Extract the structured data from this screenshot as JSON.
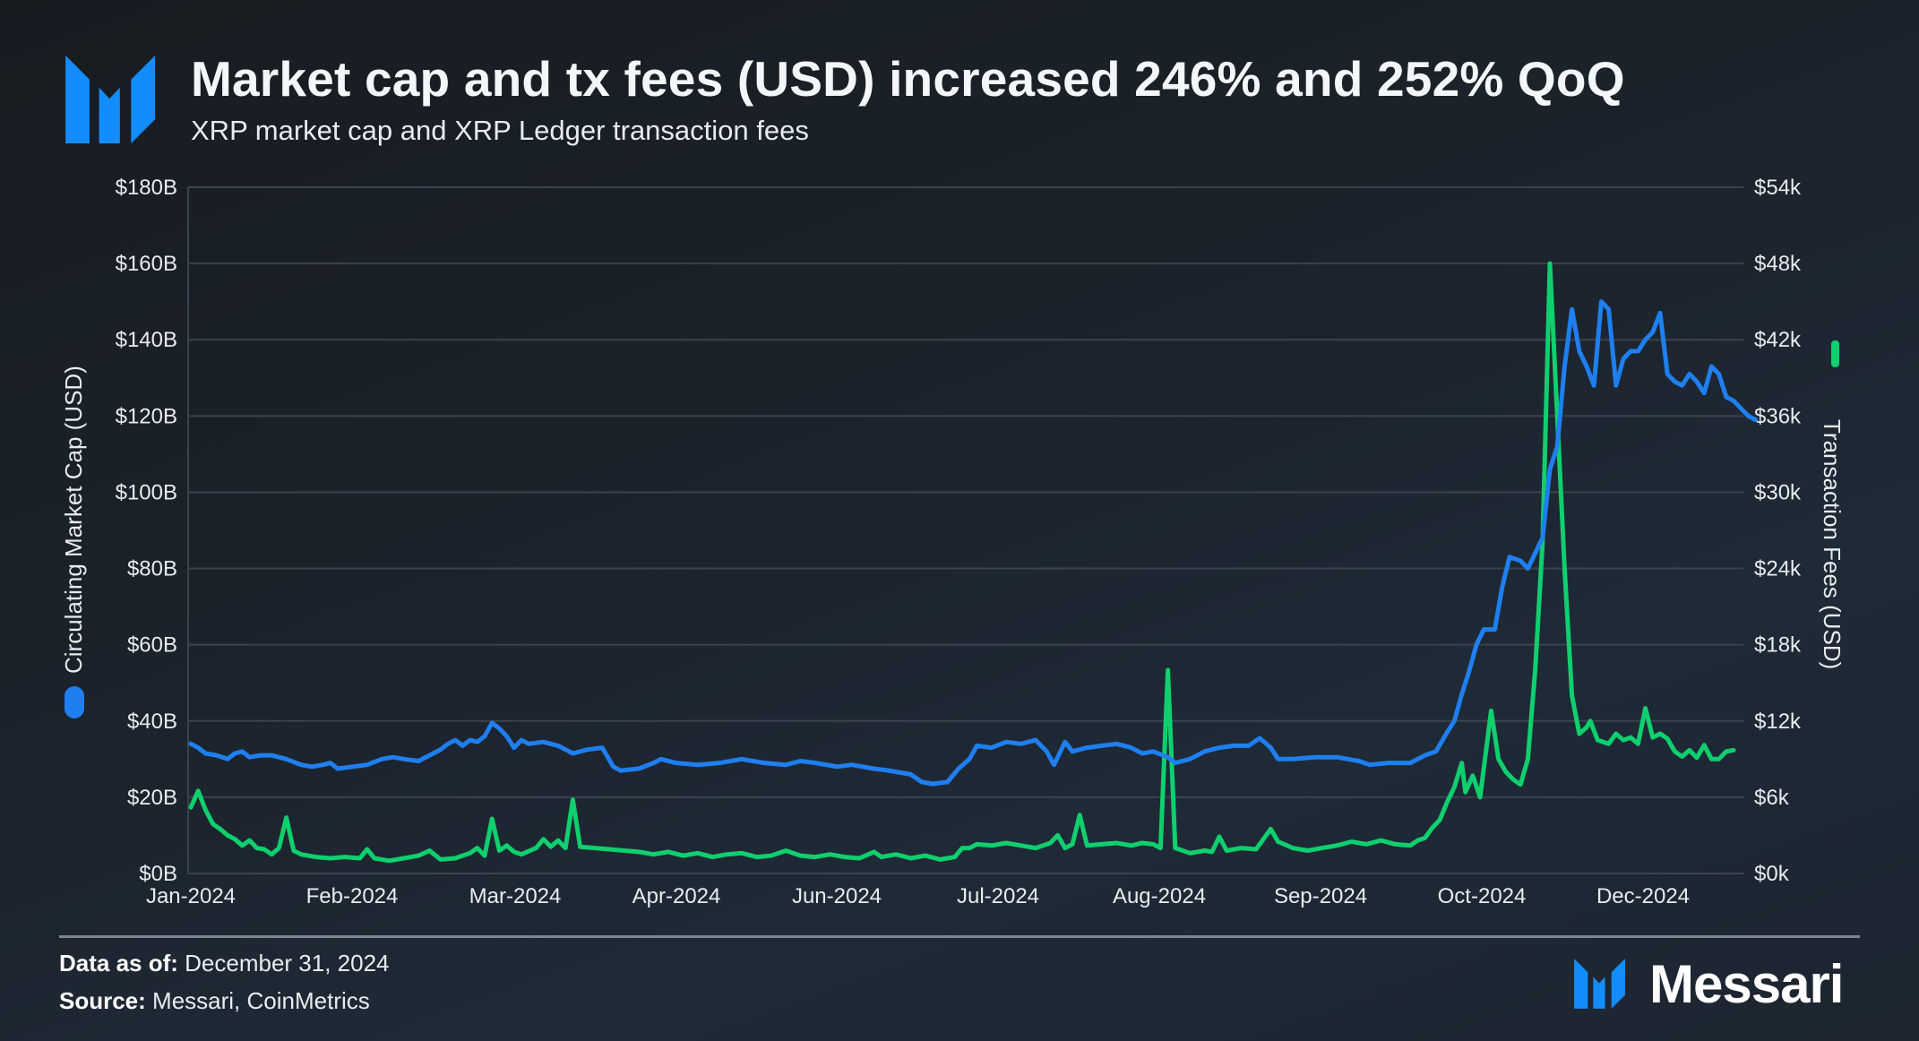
{
  "header": {
    "title": "Market cap and tx fees (USD) increased 246% and 252% QoQ",
    "subtitle": "XRP market cap and XRP Ledger transaction fees",
    "logo_icon": "messari-logo-icon"
  },
  "footer": {
    "data_as_of_label": "Data as of:",
    "data_as_of_value": " December 31, 2024",
    "source_label": "Source:",
    "source_value": " Messari, CoinMetrics",
    "brand_name": "Messari"
  },
  "colors": {
    "market_cap": "#1f7ff0",
    "tx_fees": "#0fcf6e",
    "logo": "#138dfb",
    "grid": "#3a434d"
  },
  "chart_data": {
    "type": "line",
    "title": "Market cap and tx fees (USD) increased 246% and 252% QoQ",
    "subtitle": "XRP market cap and XRP Ledger transaction fees",
    "xlabel": "",
    "ylabel": "Circulating Market Cap (USD)",
    "y2label": "Transaction Fees (USD)",
    "x_tick_labels": [
      "Jan-2024",
      "Feb-2024",
      "Mar-2024",
      "Apr-2024",
      "Jun-2024",
      "Jul-2024",
      "Aug-2024",
      "Sep-2024",
      "Oct-2024",
      "Dec-2024"
    ],
    "y_ticks": [
      "$0B",
      "$20B",
      "$40B",
      "$60B",
      "$80B",
      "$100B",
      "$120B",
      "$140B",
      "$160B",
      "$180B"
    ],
    "y2_ticks": [
      "$0k",
      "$6k",
      "$12k",
      "$18k",
      "$24k",
      "$30k",
      "$36k",
      "$42k",
      "$48k",
      "$54k"
    ],
    "ylim": [
      0,
      180
    ],
    "y2lim": [
      0,
      54000
    ],
    "grid": true,
    "legend_position": "axis titles (left: blue marker, right: green marker)",
    "x_unit": "day index from Jan 1, 2024 (0-365)",
    "series": [
      {
        "name": "Circulating Market Cap (USD)",
        "axis": "left",
        "unit": "USD billions",
        "points": [
          [
            0,
            34
          ],
          [
            2,
            33
          ],
          [
            4,
            31.5
          ],
          [
            7,
            31
          ],
          [
            10,
            30
          ],
          [
            12,
            31.5
          ],
          [
            14,
            32
          ],
          [
            16,
            30.5
          ],
          [
            19,
            31
          ],
          [
            22,
            31
          ],
          [
            26,
            30
          ],
          [
            30,
            28.5
          ],
          [
            33,
            28
          ],
          [
            36,
            28.5
          ],
          [
            38,
            29
          ],
          [
            40,
            27.5
          ],
          [
            44,
            28
          ],
          [
            48,
            28.5
          ],
          [
            52,
            30
          ],
          [
            55,
            30.5
          ],
          [
            58,
            30
          ],
          [
            62,
            29.5
          ],
          [
            65,
            31
          ],
          [
            68,
            32.5
          ],
          [
            70,
            34
          ],
          [
            72,
            35
          ],
          [
            74,
            33.5
          ],
          [
            76,
            35
          ],
          [
            78,
            34.5
          ],
          [
            80,
            36
          ],
          [
            82,
            39.5
          ],
          [
            84,
            38
          ],
          [
            86,
            36
          ],
          [
            88,
            33
          ],
          [
            90,
            35
          ],
          [
            92,
            34
          ],
          [
            96,
            34.5
          ],
          [
            100,
            33.5
          ],
          [
            104,
            31.5
          ],
          [
            108,
            32.5
          ],
          [
            112,
            33
          ],
          [
            115,
            28
          ],
          [
            117,
            27
          ],
          [
            122,
            27.5
          ],
          [
            126,
            29
          ],
          [
            128,
            30
          ],
          [
            132,
            29
          ],
          [
            138,
            28.5
          ],
          [
            144,
            29
          ],
          [
            150,
            30
          ],
          [
            156,
            29
          ],
          [
            162,
            28.5
          ],
          [
            166,
            29.5
          ],
          [
            170,
            29
          ],
          [
            176,
            28
          ],
          [
            180,
            28.5
          ],
          [
            186,
            27.5
          ],
          [
            190,
            27
          ],
          [
            196,
            26
          ],
          [
            199,
            24
          ],
          [
            202,
            23.5
          ],
          [
            206,
            24
          ],
          [
            209,
            27.5
          ],
          [
            212,
            30
          ],
          [
            214,
            33.5
          ],
          [
            218,
            33
          ],
          [
            222,
            34.5
          ],
          [
            226,
            34
          ],
          [
            230,
            35
          ],
          [
            233,
            32
          ],
          [
            235,
            28.5
          ],
          [
            238,
            34.5
          ],
          [
            240,
            32
          ],
          [
            244,
            33
          ],
          [
            248,
            33.5
          ],
          [
            252,
            34
          ],
          [
            256,
            33
          ],
          [
            259,
            31.5
          ],
          [
            262,
            32
          ],
          [
            266,
            30.5
          ],
          [
            268,
            29
          ],
          [
            272,
            30
          ],
          [
            276,
            32
          ],
          [
            280,
            33
          ],
          [
            284,
            33.5
          ],
          [
            288,
            33.5
          ],
          [
            291,
            35.5
          ],
          [
            294,
            33
          ],
          [
            296,
            30
          ],
          [
            300,
            30
          ],
          [
            306,
            30.5
          ],
          [
            312,
            30.5
          ],
          [
            318,
            29.5
          ],
          [
            321,
            28.5
          ],
          [
            326,
            29
          ],
          [
            332,
            29
          ],
          [
            336,
            31
          ],
          [
            339,
            32
          ],
          [
            342,
            37
          ],
          [
            344,
            40
          ],
          [
            346,
            47
          ],
          [
            348,
            53
          ],
          [
            350,
            60
          ],
          [
            352,
            64
          ],
          [
            355,
            64
          ],
          [
            357,
            75
          ],
          [
            359,
            83
          ],
          [
            362,
            82
          ],
          [
            364,
            80
          ],
          [
            366,
            84
          ],
          [
            368,
            88
          ],
          [
            370,
            106
          ],
          [
            372,
            112
          ],
          [
            374,
            133
          ],
          [
            376,
            148
          ],
          [
            378,
            137
          ],
          [
            380,
            133
          ],
          [
            382,
            128
          ],
          [
            384,
            150
          ],
          [
            386,
            148
          ],
          [
            388,
            128
          ],
          [
            390,
            135
          ],
          [
            392,
            137
          ],
          [
            394,
            137
          ],
          [
            396,
            140
          ],
          [
            398,
            142
          ],
          [
            400,
            147
          ],
          [
            402,
            131
          ],
          [
            404,
            129
          ],
          [
            406,
            128
          ],
          [
            408,
            131
          ],
          [
            410,
            129
          ],
          [
            412,
            126
          ],
          [
            414,
            133
          ],
          [
            416,
            131
          ],
          [
            418,
            125
          ],
          [
            420,
            124
          ],
          [
            422,
            122
          ],
          [
            424,
            120
          ],
          [
            426,
            119
          ]
        ]
      },
      {
        "name": "Transaction Fees (USD)",
        "axis": "right",
        "unit": "USD",
        "points": [
          [
            0,
            5200
          ],
          [
            2,
            6500
          ],
          [
            4,
            5000
          ],
          [
            6,
            3900
          ],
          [
            8,
            3500
          ],
          [
            10,
            3000
          ],
          [
            12,
            2700
          ],
          [
            14,
            2200
          ],
          [
            16,
            2600
          ],
          [
            18,
            2000
          ],
          [
            20,
            1900
          ],
          [
            22,
            1500
          ],
          [
            24,
            2000
          ],
          [
            26,
            4400
          ],
          [
            28,
            1800
          ],
          [
            30,
            1500
          ],
          [
            34,
            1300
          ],
          [
            38,
            1200
          ],
          [
            42,
            1300
          ],
          [
            46,
            1200
          ],
          [
            48,
            1900
          ],
          [
            50,
            1200
          ],
          [
            54,
            1000
          ],
          [
            58,
            1200
          ],
          [
            62,
            1400
          ],
          [
            65,
            1800
          ],
          [
            68,
            1100
          ],
          [
            72,
            1200
          ],
          [
            76,
            1600
          ],
          [
            78,
            2000
          ],
          [
            80,
            1400
          ],
          [
            82,
            4300
          ],
          [
            84,
            1800
          ],
          [
            86,
            2200
          ],
          [
            88,
            1700
          ],
          [
            90,
            1500
          ],
          [
            94,
            2000
          ],
          [
            96,
            2700
          ],
          [
            98,
            2100
          ],
          [
            100,
            2600
          ],
          [
            102,
            2000
          ],
          [
            104,
            5800
          ],
          [
            106,
            2100
          ],
          [
            110,
            2000
          ],
          [
            114,
            1900
          ],
          [
            118,
            1800
          ],
          [
            122,
            1700
          ],
          [
            126,
            1500
          ],
          [
            130,
            1700
          ],
          [
            134,
            1400
          ],
          [
            138,
            1600
          ],
          [
            142,
            1300
          ],
          [
            146,
            1500
          ],
          [
            150,
            1600
          ],
          [
            154,
            1300
          ],
          [
            158,
            1400
          ],
          [
            162,
            1800
          ],
          [
            166,
            1400
          ],
          [
            170,
            1300
          ],
          [
            174,
            1500
          ],
          [
            178,
            1300
          ],
          [
            182,
            1200
          ],
          [
            186,
            1700
          ],
          [
            188,
            1300
          ],
          [
            192,
            1500
          ],
          [
            196,
            1200
          ],
          [
            200,
            1400
          ],
          [
            204,
            1100
          ],
          [
            208,
            1300
          ],
          [
            210,
            2000
          ],
          [
            212,
            2000
          ],
          [
            214,
            2300
          ],
          [
            218,
            2200
          ],
          [
            222,
            2400
          ],
          [
            226,
            2200
          ],
          [
            230,
            2000
          ],
          [
            234,
            2400
          ],
          [
            236,
            3000
          ],
          [
            238,
            2000
          ],
          [
            240,
            2300
          ],
          [
            242,
            4600
          ],
          [
            244,
            2200
          ],
          [
            248,
            2300
          ],
          [
            252,
            2400
          ],
          [
            256,
            2200
          ],
          [
            259,
            2400
          ],
          [
            262,
            2300
          ],
          [
            264,
            2000
          ],
          [
            266,
            16000
          ],
          [
            268,
            2000
          ],
          [
            272,
            1600
          ],
          [
            276,
            1800
          ],
          [
            278,
            1700
          ],
          [
            280,
            2900
          ],
          [
            282,
            1800
          ],
          [
            286,
            2000
          ],
          [
            290,
            1900
          ],
          [
            294,
            3500
          ],
          [
            296,
            2500
          ],
          [
            300,
            2000
          ],
          [
            304,
            1800
          ],
          [
            308,
            2000
          ],
          [
            312,
            2200
          ],
          [
            316,
            2500
          ],
          [
            320,
            2300
          ],
          [
            324,
            2600
          ],
          [
            328,
            2300
          ],
          [
            332,
            2200
          ],
          [
            334,
            2600
          ],
          [
            336,
            2800
          ],
          [
            338,
            3600
          ],
          [
            340,
            4200
          ],
          [
            342,
            5600
          ],
          [
            344,
            6800
          ],
          [
            346,
            8700
          ],
          [
            347,
            6400
          ],
          [
            349,
            7700
          ],
          [
            351,
            6000
          ],
          [
            354,
            12800
          ],
          [
            356,
            9000
          ],
          [
            358,
            8000
          ],
          [
            360,
            7400
          ],
          [
            362,
            7000
          ],
          [
            364,
            9000
          ],
          [
            366,
            16000
          ],
          [
            368,
            26000
          ],
          [
            370,
            48000
          ],
          [
            372,
            36000
          ],
          [
            374,
            24000
          ],
          [
            376,
            14000
          ],
          [
            378,
            11000
          ],
          [
            380,
            11500
          ],
          [
            381,
            12000
          ],
          [
            383,
            10500
          ],
          [
            386,
            10200
          ],
          [
            388,
            11000
          ],
          [
            390,
            10500
          ],
          [
            392,
            10700
          ],
          [
            394,
            10200
          ],
          [
            396,
            13000
          ],
          [
            398,
            10700
          ],
          [
            400,
            11000
          ],
          [
            402,
            10600
          ],
          [
            404,
            9600
          ],
          [
            406,
            9200
          ],
          [
            408,
            9700
          ],
          [
            410,
            9100
          ],
          [
            412,
            10100
          ],
          [
            414,
            9000
          ],
          [
            416,
            9000
          ],
          [
            418,
            9600
          ],
          [
            420,
            9700
          ]
        ]
      }
    ]
  }
}
